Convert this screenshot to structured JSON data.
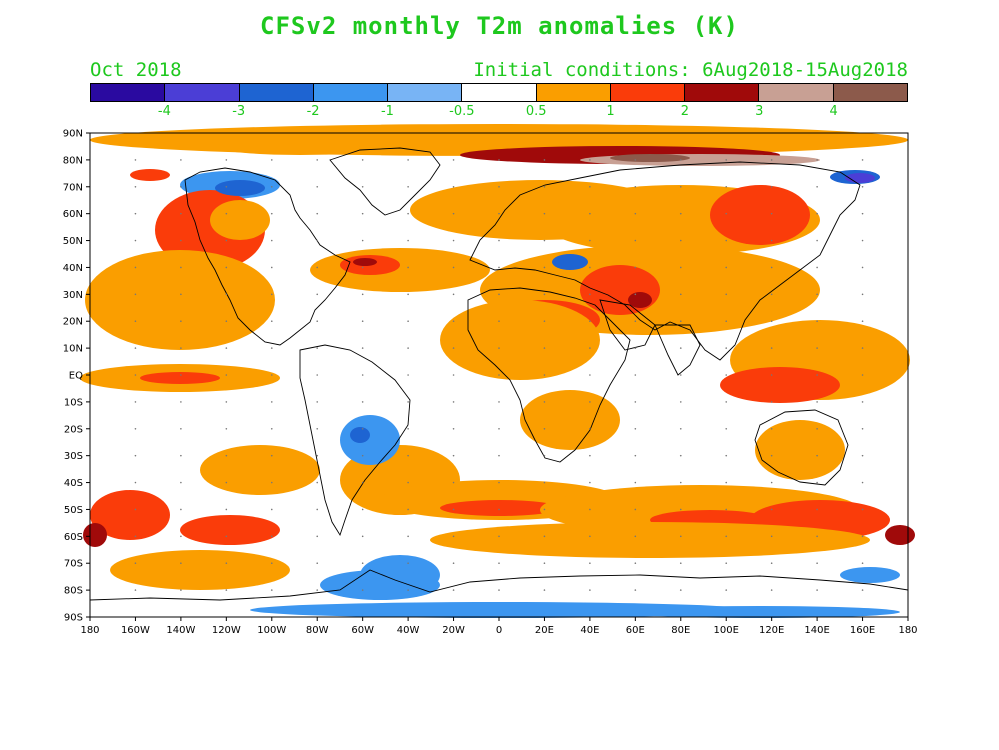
{
  "title": "CFSv2 monthly T2m anomalies (K)",
  "month_label": "Oct 2018",
  "initial_conditions": "Initial conditions: 6Aug2018-15Aug2018",
  "colorbar": {
    "colors": [
      "#2a0aa0",
      "#4b3ed6",
      "#1e64d2",
      "#3c96f0",
      "#78b4f5",
      "#ffffff",
      "#fa9e00",
      "#fa3c0a",
      "#a00a0a",
      "#c8a094",
      "#8c5a4b"
    ],
    "labels": [
      "-4",
      "-3",
      "-2",
      "-1",
      "-0.5",
      "0.5",
      "1",
      "2",
      "3",
      "4"
    ]
  },
  "axes": {
    "lat_labels": [
      "90N",
      "80N",
      "70N",
      "60N",
      "50N",
      "40N",
      "30N",
      "20N",
      "10N",
      "EQ",
      "10S",
      "20S",
      "30S",
      "40S",
      "50S",
      "60S",
      "70S",
      "80S",
      "90S"
    ],
    "lon_labels": [
      "180",
      "160W",
      "140W",
      "120W",
      "100W",
      "80W",
      "60W",
      "40W",
      "20W",
      "0",
      "20E",
      "40E",
      "60E",
      "80E",
      "100E",
      "120E",
      "140E",
      "160E",
      "180"
    ]
  }
}
